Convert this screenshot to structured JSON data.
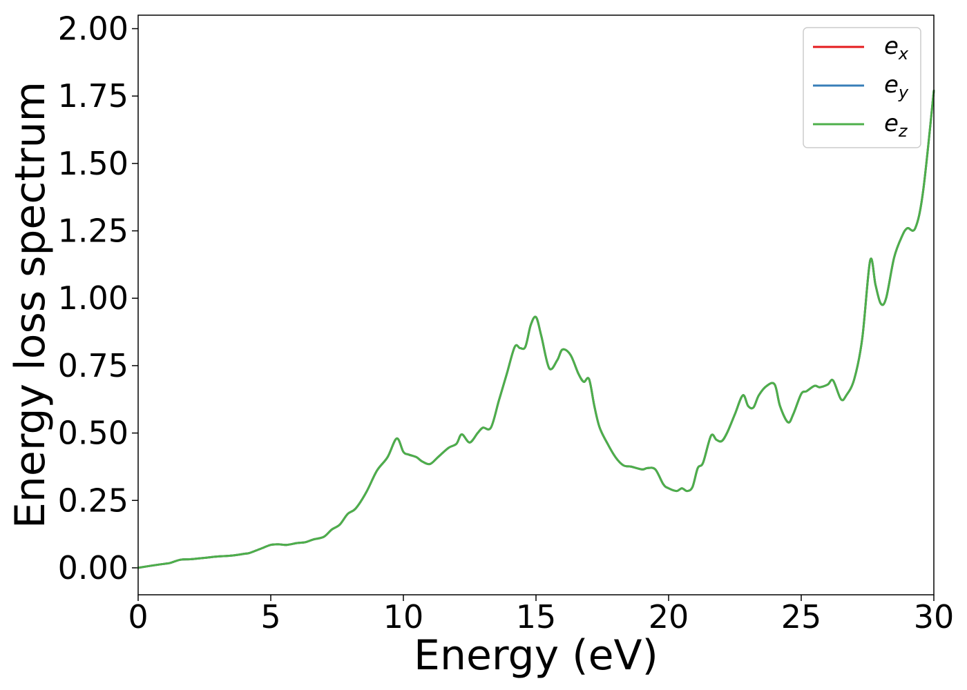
{
  "chart_data": {
    "type": "line",
    "xlabel": "Energy (eV)",
    "ylabel": "Energy loss spectrum",
    "xlim": [
      0,
      30
    ],
    "ylim": [
      -0.1,
      2.05
    ],
    "xticks": [
      0,
      5,
      10,
      15,
      20,
      25,
      30
    ],
    "xtick_labels": [
      "0",
      "5",
      "10",
      "15",
      "20",
      "25",
      "30"
    ],
    "yticks": [
      0.0,
      0.25,
      0.5,
      0.75,
      1.0,
      1.25,
      1.5,
      1.75,
      2.0
    ],
    "ytick_labels": [
      "0.00",
      "0.25",
      "0.50",
      "0.75",
      "1.00",
      "1.25",
      "1.50",
      "1.75",
      "2.00"
    ],
    "grid": false,
    "legend_position": "top-right",
    "x": [
      0,
      0.5,
      1.0,
      1.2,
      1.6,
      2.0,
      2.5,
      3.0,
      3.5,
      4.0,
      4.2,
      4.6,
      5.0,
      5.3,
      5.6,
      6.0,
      6.3,
      6.6,
      7.0,
      7.3,
      7.6,
      7.9,
      8.2,
      8.6,
      9.0,
      9.4,
      9.75,
      10.0,
      10.2,
      10.5,
      10.7,
      11.0,
      11.3,
      11.7,
      12.0,
      12.2,
      12.5,
      12.8,
      13.0,
      13.3,
      13.6,
      13.9,
      14.2,
      14.4,
      14.6,
      14.8,
      15.0,
      15.2,
      15.5,
      15.8,
      16.0,
      16.3,
      16.6,
      16.8,
      17.0,
      17.2,
      17.4,
      17.7,
      18.0,
      18.3,
      18.6,
      19.0,
      19.2,
      19.5,
      19.8,
      20.0,
      20.3,
      20.5,
      20.7,
      20.9,
      21.1,
      21.3,
      21.6,
      21.8,
      22.0,
      22.2,
      22.5,
      22.8,
      23.0,
      23.2,
      23.4,
      23.7,
      24.0,
      24.2,
      24.5,
      24.7,
      25.0,
      25.2,
      25.5,
      25.7,
      26.0,
      26.2,
      26.5,
      26.7,
      27.0,
      27.3,
      27.6,
      27.8,
      28.0,
      28.2,
      28.5,
      28.8,
      29.0,
      29.3,
      29.6,
      30.0
    ],
    "series": [
      {
        "name": "e_x",
        "color": "#e41a1c",
        "values": [
          0.0,
          0.008,
          0.015,
          0.018,
          0.03,
          0.032,
          0.037,
          0.042,
          0.045,
          0.052,
          0.055,
          0.07,
          0.085,
          0.087,
          0.085,
          0.092,
          0.095,
          0.105,
          0.115,
          0.142,
          0.16,
          0.2,
          0.22,
          0.28,
          0.36,
          0.41,
          0.48,
          0.43,
          0.42,
          0.41,
          0.395,
          0.385,
          0.41,
          0.445,
          0.46,
          0.495,
          0.465,
          0.5,
          0.52,
          0.52,
          0.62,
          0.72,
          0.82,
          0.815,
          0.82,
          0.9,
          0.93,
          0.86,
          0.74,
          0.77,
          0.81,
          0.79,
          0.72,
          0.69,
          0.7,
          0.6,
          0.52,
          0.46,
          0.41,
          0.38,
          0.375,
          0.365,
          0.37,
          0.365,
          0.31,
          0.295,
          0.285,
          0.295,
          0.285,
          0.3,
          0.37,
          0.39,
          0.49,
          0.475,
          0.47,
          0.5,
          0.57,
          0.64,
          0.6,
          0.595,
          0.64,
          0.675,
          0.68,
          0.6,
          0.54,
          0.57,
          0.645,
          0.655,
          0.675,
          0.67,
          0.68,
          0.695,
          0.625,
          0.64,
          0.7,
          0.85,
          1.14,
          1.05,
          0.98,
          1.0,
          1.15,
          1.23,
          1.26,
          1.26,
          1.4,
          1.77
        ]
      },
      {
        "name": "e_y",
        "color": "#377eb8",
        "values": [
          0.0,
          0.008,
          0.015,
          0.018,
          0.03,
          0.032,
          0.037,
          0.042,
          0.045,
          0.052,
          0.055,
          0.07,
          0.085,
          0.087,
          0.085,
          0.092,
          0.095,
          0.105,
          0.115,
          0.142,
          0.16,
          0.2,
          0.22,
          0.28,
          0.36,
          0.41,
          0.48,
          0.43,
          0.42,
          0.41,
          0.395,
          0.385,
          0.41,
          0.445,
          0.46,
          0.495,
          0.465,
          0.5,
          0.52,
          0.52,
          0.62,
          0.72,
          0.82,
          0.815,
          0.82,
          0.9,
          0.93,
          0.86,
          0.74,
          0.77,
          0.81,
          0.79,
          0.72,
          0.69,
          0.7,
          0.6,
          0.52,
          0.46,
          0.41,
          0.38,
          0.375,
          0.365,
          0.37,
          0.365,
          0.31,
          0.295,
          0.285,
          0.295,
          0.285,
          0.3,
          0.37,
          0.39,
          0.49,
          0.475,
          0.47,
          0.5,
          0.57,
          0.64,
          0.6,
          0.595,
          0.64,
          0.675,
          0.68,
          0.6,
          0.54,
          0.57,
          0.645,
          0.655,
          0.675,
          0.67,
          0.68,
          0.695,
          0.625,
          0.64,
          0.7,
          0.85,
          1.14,
          1.05,
          0.98,
          1.0,
          1.15,
          1.23,
          1.26,
          1.26,
          1.4,
          1.77
        ]
      },
      {
        "name": "e_z",
        "color": "#4daf4a",
        "values": [
          0.0,
          0.008,
          0.015,
          0.018,
          0.03,
          0.032,
          0.037,
          0.042,
          0.045,
          0.052,
          0.055,
          0.07,
          0.085,
          0.087,
          0.085,
          0.092,
          0.095,
          0.105,
          0.115,
          0.142,
          0.16,
          0.2,
          0.22,
          0.28,
          0.36,
          0.41,
          0.48,
          0.43,
          0.42,
          0.41,
          0.395,
          0.385,
          0.41,
          0.445,
          0.46,
          0.495,
          0.465,
          0.5,
          0.52,
          0.52,
          0.62,
          0.72,
          0.82,
          0.815,
          0.82,
          0.9,
          0.93,
          0.86,
          0.74,
          0.77,
          0.81,
          0.79,
          0.72,
          0.69,
          0.7,
          0.6,
          0.52,
          0.46,
          0.41,
          0.38,
          0.375,
          0.365,
          0.37,
          0.365,
          0.31,
          0.295,
          0.285,
          0.295,
          0.285,
          0.3,
          0.37,
          0.39,
          0.49,
          0.475,
          0.47,
          0.5,
          0.57,
          0.64,
          0.6,
          0.595,
          0.64,
          0.675,
          0.68,
          0.6,
          0.54,
          0.57,
          0.645,
          0.655,
          0.675,
          0.67,
          0.68,
          0.695,
          0.625,
          0.64,
          0.7,
          0.85,
          1.14,
          1.05,
          0.98,
          1.0,
          1.15,
          1.23,
          1.26,
          1.26,
          1.4,
          1.77
        ]
      }
    ],
    "legend": [
      {
        "base": "e",
        "sub": "x",
        "color": "#e41a1c"
      },
      {
        "base": "e",
        "sub": "y",
        "color": "#377eb8"
      },
      {
        "base": "e",
        "sub": "z",
        "color": "#4daf4a"
      }
    ]
  }
}
